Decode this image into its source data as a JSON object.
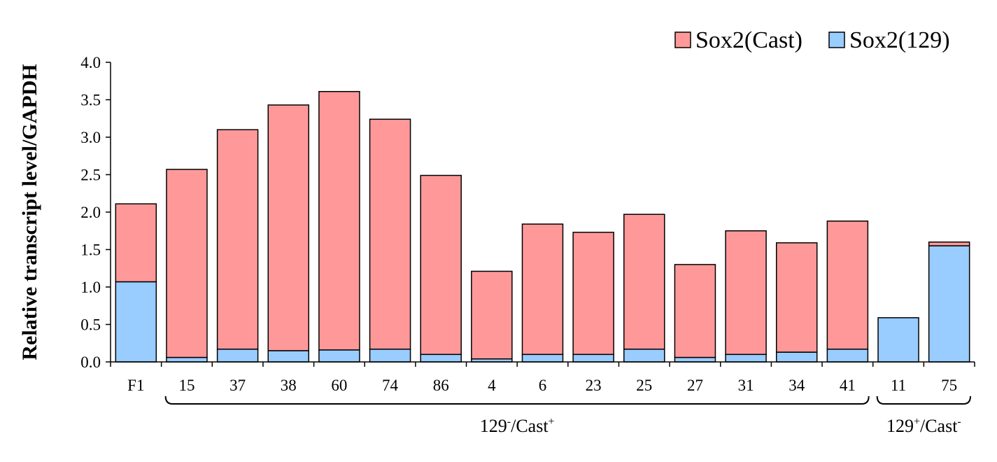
{
  "chart_data": {
    "type": "bar",
    "stacked": true,
    "title": "",
    "xlabel": "",
    "ylabel": "Relative transcript level/GAPDH",
    "ylim": [
      0,
      4.0
    ],
    "yticks": [
      "0.0",
      "0.5",
      "1.0",
      "1.5",
      "2.0",
      "2.5",
      "3.0",
      "3.5",
      "4.0"
    ],
    "categories": [
      "F1",
      "15",
      "37",
      "38",
      "60",
      "74",
      "86",
      "4",
      "6",
      "23",
      "25",
      "27",
      "31",
      "34",
      "41",
      "11",
      "75"
    ],
    "series": [
      {
        "name": "Sox2(129)",
        "color": "#99CCFF",
        "values": [
          1.07,
          0.06,
          0.17,
          0.15,
          0.16,
          0.17,
          0.1,
          0.04,
          0.1,
          0.1,
          0.17,
          0.06,
          0.1,
          0.13,
          0.17,
          0.59,
          1.55
        ]
      },
      {
        "name": "Sox2(Cast)",
        "color": "#FF9999",
        "values": [
          1.04,
          2.51,
          2.93,
          3.28,
          3.45,
          3.07,
          2.39,
          1.17,
          1.74,
          1.63,
          1.8,
          1.24,
          1.65,
          1.46,
          1.71,
          0.0,
          0.05
        ]
      }
    ],
    "legend": {
      "position": "top-right",
      "entries": [
        "Sox2(Cast)",
        "Sox2(129)"
      ]
    },
    "groups": [
      {
        "base": "129",
        "sup1": "-",
        "mid": "/Cast",
        "sup2": "+",
        "from": "15",
        "to": "41"
      },
      {
        "base": "129",
        "sup1": "+",
        "mid": "/Cast",
        "sup2": "-",
        "from": "11",
        "to": "75"
      }
    ],
    "grid": false
  }
}
